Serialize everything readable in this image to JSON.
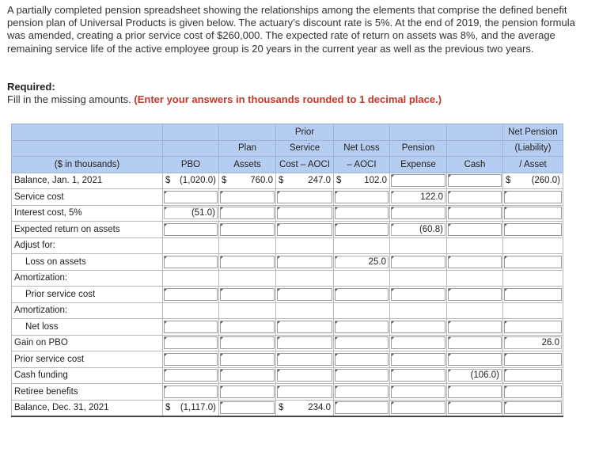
{
  "intro": "A partially completed pension spreadsheet showing the relationships among the elements that comprise the defined benefit pension plan of Universal Products is given below. The actuary’s discount rate is 5%. At the end of 2019, the pension formula was amended, creating a prior service cost of $260,000. The expected rate of return on assets was 8%, and the average remaining service life of the active employee group is 20 years in the current year as well as the previous two years.",
  "required_title": "Required:",
  "required_text": "Fill in the missing amounts. ",
  "required_bold": "(Enter your answers in thousands rounded to 1 decimal place.)",
  "headers": {
    "label": "($ in thousands)",
    "pbo": "PBO",
    "plan_1": "Plan",
    "plan_2": "Assets",
    "psc_1": "Prior",
    "psc_2": "Service",
    "psc_3": "Cost – AOCI",
    "nl_1": "Net Loss",
    "nl_2": "– AOCI",
    "pe_1": "Pension",
    "pe_2": "Expense",
    "cash": "Cash",
    "np_1": "Net Pension",
    "np_2": "(Liability)",
    "np_3": "/ Asset"
  },
  "rows": [
    {
      "label": "Balance, Jan. 1, 2021",
      "pbo": {
        "prefix": "$",
        "value": "(1,020.0)"
      },
      "plan": {
        "prefix": "$",
        "value": "760.0"
      },
      "psc": {
        "prefix": "$",
        "value": "247.0"
      },
      "nl": {
        "prefix": "$",
        "value": "102.0"
      },
      "np": {
        "prefix": "$",
        "value": "(260.0)"
      }
    },
    {
      "label": "Service cost",
      "pe": "122.0"
    },
    {
      "label": "Interest cost, 5%",
      "pbo": "(51.0)"
    },
    {
      "label": "Expected return on assets",
      "pe": "(60.8)"
    },
    {
      "label": "Adjust for:"
    },
    {
      "label": "Loss on assets",
      "nl": "25.0"
    },
    {
      "label": "Amortization:"
    },
    {
      "label": "Prior service cost"
    },
    {
      "label": "Amortization:"
    },
    {
      "label": "Net loss"
    },
    {
      "label": "Gain on PBO",
      "np": "26.0"
    },
    {
      "label": "Prior service cost"
    },
    {
      "label": "Cash funding",
      "cash": "(106.0)"
    },
    {
      "label": "Retiree benefits"
    },
    {
      "label": "Balance, Dec. 31, 2021",
      "pbo": {
        "prefix": "$",
        "value": "(1,117.0)"
      },
      "psc": {
        "prefix": "$",
        "value": "234.0"
      }
    }
  ]
}
